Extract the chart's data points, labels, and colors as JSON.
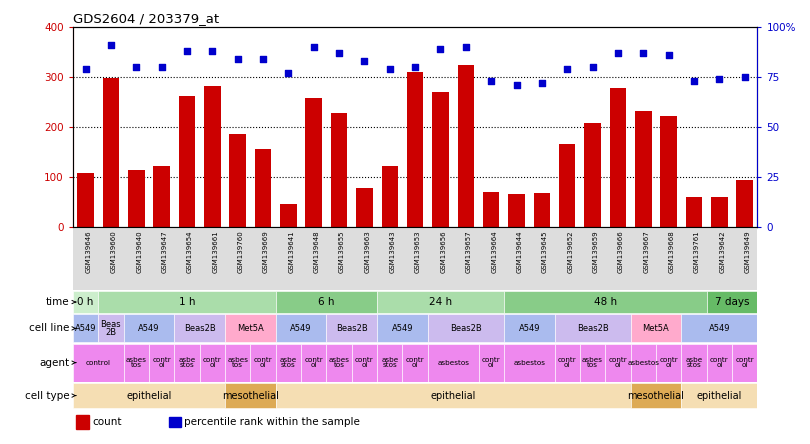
{
  "title": "GDS2604 / 203379_at",
  "samples": [
    "GSM139646",
    "GSM139660",
    "GSM139640",
    "GSM139647",
    "GSM139654",
    "GSM139661",
    "GSM139760",
    "GSM139669",
    "GSM139641",
    "GSM139648",
    "GSM139655",
    "GSM139663",
    "GSM139643",
    "GSM139653",
    "GSM139656",
    "GSM139657",
    "GSM139664",
    "GSM139644",
    "GSM139645",
    "GSM139652",
    "GSM139659",
    "GSM139666",
    "GSM139667",
    "GSM139668",
    "GSM139761",
    "GSM139642",
    "GSM139649"
  ],
  "counts": [
    108,
    297,
    113,
    122,
    262,
    282,
    186,
    156,
    45,
    258,
    228,
    78,
    122,
    310,
    270,
    323,
    69,
    65,
    67,
    166,
    208,
    278,
    232,
    222,
    60,
    60,
    94
  ],
  "percentiles": [
    79,
    91,
    80,
    80,
    88,
    88,
    84,
    84,
    77,
    90,
    87,
    83,
    79,
    80,
    89,
    90,
    73,
    71,
    72,
    79,
    80,
    87,
    87,
    86,
    73,
    74,
    75
  ],
  "time_groups": [
    {
      "label": "0 h",
      "start": 0,
      "end": 1,
      "color": "#cceecc"
    },
    {
      "label": "1 h",
      "start": 1,
      "end": 8,
      "color": "#aaddaa"
    },
    {
      "label": "6 h",
      "start": 8,
      "end": 12,
      "color": "#88cc88"
    },
    {
      "label": "24 h",
      "start": 12,
      "end": 17,
      "color": "#aaddaa"
    },
    {
      "label": "48 h",
      "start": 17,
      "end": 25,
      "color": "#88cc88"
    },
    {
      "label": "7 days",
      "start": 25,
      "end": 27,
      "color": "#66bb66"
    }
  ],
  "cell_line_groups": [
    {
      "label": "A549",
      "start": 0,
      "end": 1,
      "color": "#aabbee"
    },
    {
      "label": "Beas\n2B",
      "start": 1,
      "end": 2,
      "color": "#ccbbee"
    },
    {
      "label": "A549",
      "start": 2,
      "end": 4,
      "color": "#aabbee"
    },
    {
      "label": "Beas2B",
      "start": 4,
      "end": 6,
      "color": "#ccbbee"
    },
    {
      "label": "Met5A",
      "start": 6,
      "end": 8,
      "color": "#ffaacc"
    },
    {
      "label": "A549",
      "start": 8,
      "end": 10,
      "color": "#aabbee"
    },
    {
      "label": "Beas2B",
      "start": 10,
      "end": 12,
      "color": "#ccbbee"
    },
    {
      "label": "A549",
      "start": 12,
      "end": 14,
      "color": "#aabbee"
    },
    {
      "label": "Beas2B",
      "start": 14,
      "end": 17,
      "color": "#ccbbee"
    },
    {
      "label": "A549",
      "start": 17,
      "end": 19,
      "color": "#aabbee"
    },
    {
      "label": "Beas2B",
      "start": 19,
      "end": 22,
      "color": "#ccbbee"
    },
    {
      "label": "Met5A",
      "start": 22,
      "end": 24,
      "color": "#ffaacc"
    },
    {
      "label": "A549",
      "start": 24,
      "end": 27,
      "color": "#aabbee"
    }
  ],
  "agent_groups": [
    {
      "label": "control",
      "start": 0,
      "end": 2,
      "color": "#ee88ee"
    },
    {
      "label": "asbes\ntos",
      "start": 2,
      "end": 3,
      "color": "#ee88ee"
    },
    {
      "label": "contr\nol",
      "start": 3,
      "end": 4,
      "color": "#ee88ee"
    },
    {
      "label": "asbe\nstos",
      "start": 4,
      "end": 5,
      "color": "#ee88ee"
    },
    {
      "label": "contr\nol",
      "start": 5,
      "end": 6,
      "color": "#ee88ee"
    },
    {
      "label": "asbes\ntos",
      "start": 6,
      "end": 7,
      "color": "#ee88ee"
    },
    {
      "label": "contr\nol",
      "start": 7,
      "end": 8,
      "color": "#ee88ee"
    },
    {
      "label": "asbe\nstos",
      "start": 8,
      "end": 9,
      "color": "#ee88ee"
    },
    {
      "label": "contr\nol",
      "start": 9,
      "end": 10,
      "color": "#ee88ee"
    },
    {
      "label": "asbes\ntos",
      "start": 10,
      "end": 11,
      "color": "#ee88ee"
    },
    {
      "label": "contr\nol",
      "start": 11,
      "end": 12,
      "color": "#ee88ee"
    },
    {
      "label": "asbe\nstos",
      "start": 12,
      "end": 13,
      "color": "#ee88ee"
    },
    {
      "label": "contr\nol",
      "start": 13,
      "end": 14,
      "color": "#ee88ee"
    },
    {
      "label": "asbestos",
      "start": 14,
      "end": 16,
      "color": "#ee88ee"
    },
    {
      "label": "contr\nol",
      "start": 16,
      "end": 17,
      "color": "#ee88ee"
    },
    {
      "label": "asbestos",
      "start": 17,
      "end": 19,
      "color": "#ee88ee"
    },
    {
      "label": "contr\nol",
      "start": 19,
      "end": 20,
      "color": "#ee88ee"
    },
    {
      "label": "asbes\ntos",
      "start": 20,
      "end": 21,
      "color": "#ee88ee"
    },
    {
      "label": "contr\nol",
      "start": 21,
      "end": 22,
      "color": "#ee88ee"
    },
    {
      "label": "asbestos",
      "start": 22,
      "end": 23,
      "color": "#ee88ee"
    },
    {
      "label": "contr\nol",
      "start": 23,
      "end": 24,
      "color": "#ee88ee"
    },
    {
      "label": "asbe\nstos",
      "start": 24,
      "end": 25,
      "color": "#ee88ee"
    },
    {
      "label": "contr\nol",
      "start": 25,
      "end": 26,
      "color": "#ee88ee"
    },
    {
      "label": "contr\nol",
      "start": 26,
      "end": 27,
      "color": "#ee88ee"
    }
  ],
  "cell_type_groups": [
    {
      "label": "epithelial",
      "start": 0,
      "end": 6,
      "color": "#f5deb3"
    },
    {
      "label": "mesothelial",
      "start": 6,
      "end": 8,
      "color": "#ddaa55"
    },
    {
      "label": "epithelial",
      "start": 8,
      "end": 22,
      "color": "#f5deb3"
    },
    {
      "label": "mesothelial",
      "start": 22,
      "end": 24,
      "color": "#ddaa55"
    },
    {
      "label": "epithelial",
      "start": 24,
      "end": 27,
      "color": "#f5deb3"
    }
  ],
  "bar_color": "#cc0000",
  "dot_color": "#0000cc",
  "bg_color": "#ffffff",
  "ylim_left": [
    0,
    400
  ],
  "ylim_right": [
    0,
    100
  ],
  "yticks_left": [
    0,
    100,
    200,
    300,
    400
  ],
  "yticks_right": [
    0,
    25,
    50,
    75,
    100
  ],
  "ytick_labels_right": [
    "0",
    "25",
    "50",
    "75",
    "100%"
  ]
}
